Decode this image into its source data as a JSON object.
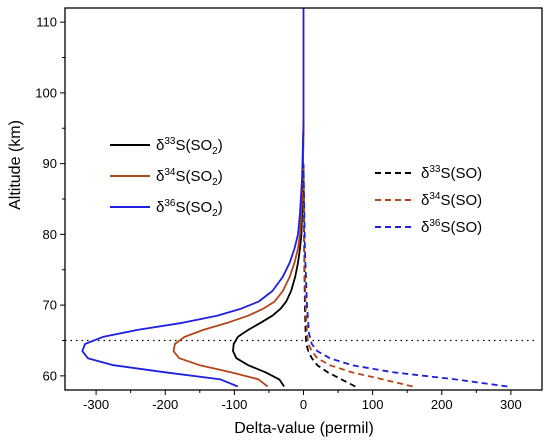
{
  "chart_data": {
    "type": "line",
    "xlabel": "Delta-value (permil)",
    "ylabel": "Altitude (km)",
    "xlim": [
      -345,
      345
    ],
    "ylim": [
      58,
      112
    ],
    "x_ticks": [
      -300,
      -200,
      -100,
      0,
      100,
      200,
      300
    ],
    "y_ticks": [
      60,
      70,
      80,
      90,
      100,
      110
    ],
    "grid": false,
    "reference_line": {
      "y": 65,
      "style": "dotted"
    },
    "legends": [
      {
        "placement": "left-middle",
        "entries": [
          "δ33S(SO2)",
          "δ34S(SO2)",
          "δ36S(SO2)"
        ]
      },
      {
        "placement": "right-middle",
        "entries": [
          "δ33S(SO)",
          "δ34S(SO)",
          "δ36S(SO)"
        ]
      }
    ],
    "series": [
      {
        "name": "δ33S(SO2)",
        "color": "#000000",
        "dash": "solid",
        "legend": {
          "sup": "33",
          "sub": "2",
          "species": "SO"
        },
        "points": [
          [
            -28,
            58.5
          ],
          [
            -35,
            59.5
          ],
          [
            -55,
            60.5
          ],
          [
            -80,
            61.5
          ],
          [
            -97,
            62.5
          ],
          [
            -102,
            63.5
          ],
          [
            -101,
            64.5
          ],
          [
            -95,
            65.5
          ],
          [
            -80,
            66.5
          ],
          [
            -62,
            67.5
          ],
          [
            -45,
            68.5
          ],
          [
            -33,
            69.5
          ],
          [
            -25,
            70.5
          ],
          [
            -18,
            72
          ],
          [
            -12,
            74
          ],
          [
            -8,
            76
          ],
          [
            -5,
            78
          ],
          [
            -3,
            80
          ],
          [
            -2,
            83
          ],
          [
            -1,
            87
          ],
          [
            0,
            96
          ]
        ]
      },
      {
        "name": "δ34S(SO2)",
        "color": "#b5451b",
        "dash": "solid",
        "legend": {
          "sup": "34",
          "sub": "2",
          "species": "SO"
        },
        "points": [
          [
            -52,
            58.5
          ],
          [
            -65,
            59.5
          ],
          [
            -105,
            60.5
          ],
          [
            -150,
            61.5
          ],
          [
            -180,
            62.5
          ],
          [
            -188,
            63.5
          ],
          [
            -186,
            64.5
          ],
          [
            -172,
            65.5
          ],
          [
            -145,
            66.5
          ],
          [
            -110,
            67.5
          ],
          [
            -80,
            68.5
          ],
          [
            -58,
            69.5
          ],
          [
            -42,
            70.5
          ],
          [
            -30,
            72
          ],
          [
            -20,
            74
          ],
          [
            -13,
            76
          ],
          [
            -8,
            78
          ],
          [
            -5,
            80
          ],
          [
            -3,
            83
          ],
          [
            -1,
            88
          ],
          [
            0,
            96
          ]
        ]
      },
      {
        "name": "δ36S(SO2)",
        "color": "#1f1fe0",
        "dash": "solid",
        "legend": {
          "sup": "36",
          "sub": "2",
          "species": "SO"
        },
        "points": [
          [
            -95,
            58.5
          ],
          [
            -120,
            59.5
          ],
          [
            -200,
            60.5
          ],
          [
            -275,
            61.5
          ],
          [
            -312,
            62.5
          ],
          [
            -320,
            63.5
          ],
          [
            -316,
            64.5
          ],
          [
            -290,
            65.5
          ],
          [
            -240,
            66.5
          ],
          [
            -175,
            67.5
          ],
          [
            -125,
            68.5
          ],
          [
            -90,
            69.5
          ],
          [
            -65,
            70.5
          ],
          [
            -45,
            72
          ],
          [
            -30,
            74
          ],
          [
            -20,
            76
          ],
          [
            -13,
            78
          ],
          [
            -8,
            80
          ],
          [
            -5,
            83
          ],
          [
            -2,
            88
          ],
          [
            0,
            96
          ],
          [
            0,
            112
          ]
        ]
      },
      {
        "name": "δ33S(SO)",
        "color": "#000000",
        "dash": "dashed",
        "legend": {
          "sup": "33",
          "sub": "",
          "species": "SO"
        },
        "points": [
          [
            75,
            58.5
          ],
          [
            55,
            59.5
          ],
          [
            35,
            60.5
          ],
          [
            20,
            61.5
          ],
          [
            12,
            62.5
          ],
          [
            7,
            63.5
          ],
          [
            4,
            64.5
          ],
          [
            3,
            66
          ],
          [
            2,
            70
          ],
          [
            1,
            78
          ],
          [
            0,
            90
          ]
        ]
      },
      {
        "name": "δ34S(SO)",
        "color": "#b5451b",
        "dash": "dashed",
        "legend": {
          "sup": "34",
          "sub": "",
          "species": "SO"
        },
        "points": [
          [
            158,
            58.5
          ],
          [
            115,
            59.5
          ],
          [
            70,
            60.5
          ],
          [
            38,
            61.5
          ],
          [
            20,
            62.5
          ],
          [
            12,
            63.5
          ],
          [
            7,
            64.5
          ],
          [
            5,
            66
          ],
          [
            3,
            70
          ],
          [
            1,
            78
          ],
          [
            0,
            90
          ]
        ]
      },
      {
        "name": "δ36S(SO)",
        "color": "#1f1fe0",
        "dash": "dashed",
        "legend": {
          "sup": "36",
          "sub": "",
          "species": "SO"
        },
        "points": [
          [
            295,
            58.5
          ],
          [
            220,
            59.5
          ],
          [
            130,
            60.5
          ],
          [
            70,
            61.5
          ],
          [
            38,
            62.5
          ],
          [
            20,
            63.5
          ],
          [
            12,
            64.5
          ],
          [
            8,
            66
          ],
          [
            5,
            70
          ],
          [
            2,
            78
          ],
          [
            0,
            90
          ]
        ]
      }
    ]
  }
}
